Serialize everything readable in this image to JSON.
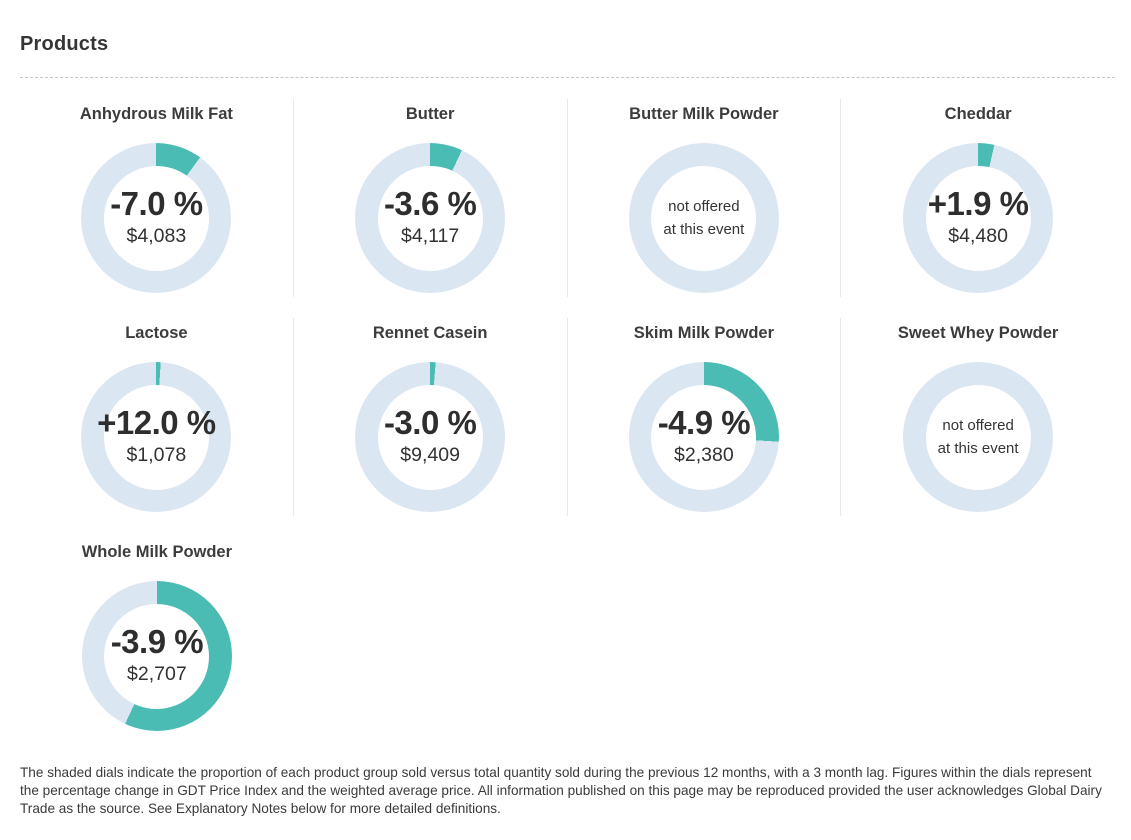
{
  "page": {
    "title": "Products",
    "footer": "The shaded dials indicate the proportion of each product group sold versus total quantity sold during the previous 12 months, with a 3 month lag. Figures within the dials represent the percentage change in GDT Price Index and the weighted average price. All information published on this page may be reproduced provided the user acknowledges Global Dairy Trade as the source. See Explanatory Notes below for more detailed definitions."
  },
  "colors": {
    "accent_teal": "#4bbcb4",
    "ring_light": "#dbe6f3",
    "divider": "#e9e9e9",
    "dashed_rule": "#c5c5c5",
    "text_dark": "#2e2e2e"
  },
  "products": [
    {
      "name": "Anhydrous Milk Fat",
      "change": "-7.0 %",
      "price": "$4,083",
      "proportion_pct": 10,
      "offered": true
    },
    {
      "name": "Butter",
      "change": "-3.6 %",
      "price": "$4,117",
      "proportion_pct": 7,
      "offered": true
    },
    {
      "name": "Butter Milk Powder",
      "offered": false,
      "note_line1": "not offered",
      "note_line2": "at this event"
    },
    {
      "name": "Cheddar",
      "change": "+1.9 %",
      "price": "$4,480",
      "proportion_pct": 3.5,
      "offered": true
    },
    {
      "name": "Lactose",
      "change": "+12.0 %",
      "price": "$1,078",
      "proportion_pct": 1,
      "offered": true
    },
    {
      "name": "Rennet Casein",
      "change": "-3.0 %",
      "price": "$9,409",
      "proportion_pct": 1.2,
      "offered": true
    },
    {
      "name": "Skim Milk Powder",
      "change": "-4.9 %",
      "price": "$2,380",
      "proportion_pct": 26,
      "offered": true
    },
    {
      "name": "Sweet Whey Powder",
      "offered": false,
      "note_line1": "not offered",
      "note_line2": "at this event"
    },
    {
      "name": "Whole Milk Powder",
      "change": "-3.9 %",
      "price": "$2,707",
      "proportion_pct": 57,
      "offered": true
    }
  ],
  "chart_data": {
    "type": "pie",
    "subtype": "donut-dial-gauges",
    "title": "Products",
    "description": "Each dial's shaded arc = proportion of product group sold vs total quantity sold (previous 12 months, 3 month lag); arc starts at 12 o'clock, clockwise.",
    "dials": [
      {
        "label": "Anhydrous Milk Fat",
        "price_index_change_pct": -7.0,
        "avg_price_usd": 4083,
        "proportion_sold_pct": 10,
        "offered": true
      },
      {
        "label": "Butter",
        "price_index_change_pct": -3.6,
        "avg_price_usd": 4117,
        "proportion_sold_pct": 7,
        "offered": true
      },
      {
        "label": "Butter Milk Powder",
        "offered": false
      },
      {
        "label": "Cheddar",
        "price_index_change_pct": 1.9,
        "avg_price_usd": 4480,
        "proportion_sold_pct": 3.5,
        "offered": true
      },
      {
        "label": "Lactose",
        "price_index_change_pct": 12.0,
        "avg_price_usd": 1078,
        "proportion_sold_pct": 1,
        "offered": true
      },
      {
        "label": "Rennet Casein",
        "price_index_change_pct": -3.0,
        "avg_price_usd": 9409,
        "proportion_sold_pct": 1.2,
        "offered": true
      },
      {
        "label": "Skim Milk Powder",
        "price_index_change_pct": -4.9,
        "avg_price_usd": 2380,
        "proportion_sold_pct": 26,
        "offered": true
      },
      {
        "label": "Sweet Whey Powder",
        "offered": false
      },
      {
        "label": "Whole Milk Powder",
        "price_index_change_pct": -3.9,
        "avg_price_usd": 2707,
        "proportion_sold_pct": 57,
        "offered": true
      }
    ]
  }
}
